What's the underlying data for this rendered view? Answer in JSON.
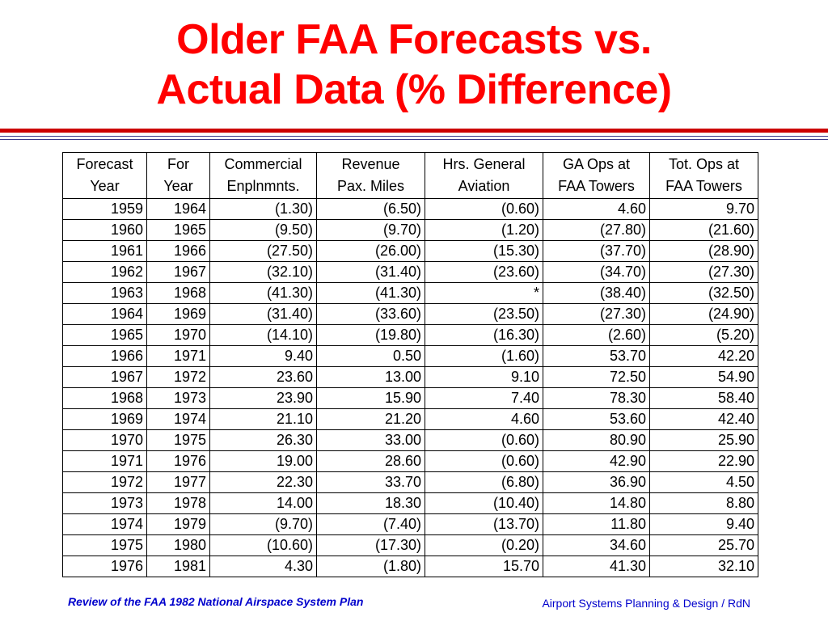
{
  "slide": {
    "title_line1": "Older FAA Forecasts vs.",
    "title_line2": "Actual Data (% Difference)"
  },
  "table": {
    "headers": [
      [
        "Forecast",
        "Year"
      ],
      [
        "For",
        "Year"
      ],
      [
        "Commercial",
        "Enplnmnts."
      ],
      [
        "Revenue",
        "Pax. Miles"
      ],
      [
        "Hrs. General",
        "Aviation"
      ],
      [
        "GA Ops at",
        "FAA Towers"
      ],
      [
        "Tot. Ops at",
        "FAA Towers"
      ]
    ],
    "rows": [
      [
        "1959",
        "1964",
        "(1.30)",
        "(6.50)",
        "(0.60)",
        "4.60",
        "9.70"
      ],
      [
        "1960",
        "1965",
        "(9.50)",
        "(9.70)",
        "(1.20)",
        "(27.80)",
        "(21.60)"
      ],
      [
        "1961",
        "1966",
        "(27.50)",
        "(26.00)",
        "(15.30)",
        "(37.70)",
        "(28.90)"
      ],
      [
        "1962",
        "1967",
        "(32.10)",
        "(31.40)",
        "(23.60)",
        "(34.70)",
        "(27.30)"
      ],
      [
        "1963",
        "1968",
        "(41.30)",
        "(41.30)",
        "*",
        "(38.40)",
        "(32.50)"
      ],
      [
        "1964",
        "1969",
        "(31.40)",
        "(33.60)",
        "(23.50)",
        "(27.30)",
        "(24.90)"
      ],
      [
        "1965",
        "1970",
        "(14.10)",
        "(19.80)",
        "(16.30)",
        "(2.60)",
        "(5.20)"
      ],
      [
        "1966",
        "1971",
        "9.40",
        "0.50",
        "(1.60)",
        "53.70",
        "42.20"
      ],
      [
        "1967",
        "1972",
        "23.60",
        "13.00",
        "9.10",
        "72.50",
        "54.90"
      ],
      [
        "1968",
        "1973",
        "23.90",
        "15.90",
        "7.40",
        "78.30",
        "58.40"
      ],
      [
        "1969",
        "1974",
        "21.10",
        "21.20",
        "4.60",
        "53.60",
        "42.40"
      ],
      [
        "1970",
        "1975",
        "26.30",
        "33.00",
        "(0.60)",
        "80.90",
        "25.90"
      ],
      [
        "1971",
        "1976",
        "19.00",
        "28.60",
        "(0.60)",
        "42.90",
        "22.90"
      ],
      [
        "1972",
        "1977",
        "22.30",
        "33.70",
        "(6.80)",
        "36.90",
        "4.50"
      ],
      [
        "1973",
        "1978",
        "14.00",
        "18.30",
        "(10.40)",
        "14.80",
        "8.80"
      ],
      [
        "1974",
        "1979",
        "(9.70)",
        "(7.40)",
        "(13.70)",
        "11.80",
        "9.40"
      ],
      [
        "1975",
        "1980",
        "(10.60)",
        "(17.30)",
        "(0.20)",
        "34.60",
        "25.70"
      ],
      [
        "1976",
        "1981",
        "4.30",
        "(1.80)",
        "15.70",
        "41.30",
        "32.10"
      ]
    ]
  },
  "footer": {
    "source": "Review of the FAA 1982 National Airspace System Plan",
    "credit": "Airport Systems Planning & Design / RdN"
  },
  "colors": {
    "title": "#ff0000",
    "rule": "#cc0000",
    "footer": "#0000cc"
  }
}
